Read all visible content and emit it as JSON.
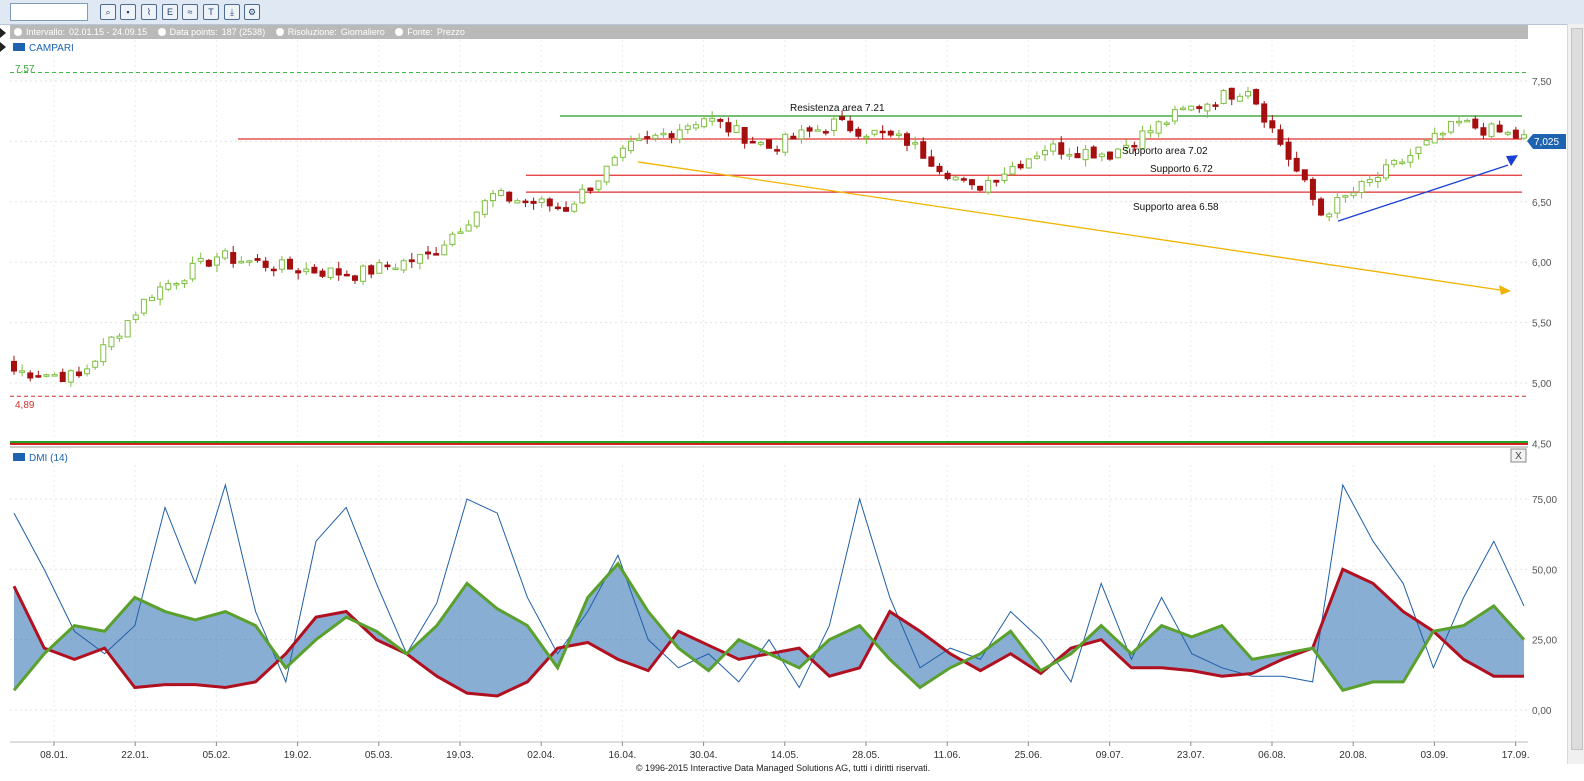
{
  "toolbar": {
    "buttons": [
      "zoom-icon",
      "candlestick-icon",
      "line-chart-icon",
      "indicator-icon",
      "studies-icon",
      "text-tool-icon",
      "export-icon",
      "settings-icon"
    ]
  },
  "infobar": {
    "interval_label": "Intervallo:",
    "interval_value": "02.01.15 - 24.09.15",
    "datapoints_label": "Data points:",
    "datapoints_value": "187 (2538)",
    "resolution_label": "Risoluzione:",
    "resolution_value": "Giornaliero",
    "source_label": "Fonte:",
    "source_value": "Prezzo"
  },
  "price_panel": {
    "legend": "CAMPARI",
    "high_marker": "7,57",
    "low_marker": "4,89",
    "last_price": "7,025",
    "y_ticks": [
      "7,50",
      "7,00",
      "6,50",
      "6,00",
      "5,50",
      "5,00",
      "4,50"
    ],
    "annotations": {
      "resistance": "Resistenza area 7.21",
      "support_702": "Supporto area 7.02",
      "support_672": "Supporto 6.72",
      "support_658": "Supporto area 6.58"
    },
    "colors": {
      "up": "#7fbf3f",
      "down": "#a50f0f",
      "resistance": "#229922",
      "support": "#e03030"
    }
  },
  "dmi_panel": {
    "legend": "DMI (14)",
    "close_label": "X",
    "y_ticks": [
      "75,00",
      "50,00",
      "25,00",
      "0,00"
    ]
  },
  "x_axis": {
    "labels": [
      "08.01.",
      "22.01.",
      "05.02.",
      "19.02.",
      "05.03.",
      "19.03.",
      "02.04.",
      "16.04.",
      "30.04.",
      "14.05.",
      "28.05.",
      "11.06.",
      "25.06.",
      "09.07.",
      "23.07.",
      "06.08.",
      "20.08.",
      "03.09.",
      "17.09."
    ]
  },
  "chart_data": [
    {
      "type": "candlestick",
      "series": [
        {
          "name": "CAMPARI"
        }
      ],
      "x_range": [
        "02.01.15",
        "24.09.15"
      ],
      "ylim": [
        4.5,
        7.6
      ],
      "high": 7.57,
      "low": 4.89,
      "last": 7.025,
      "key_closes": [
        {
          "date": "02.01.",
          "value": 5.1
        },
        {
          "date": "08.01.",
          "value": 5.05
        },
        {
          "date": "22.01.",
          "value": 5.75
        },
        {
          "date": "29.01.",
          "value": 6.05
        },
        {
          "date": "05.02.",
          "value": 5.95
        },
        {
          "date": "19.02.",
          "value": 5.9
        },
        {
          "date": "05.03.",
          "value": 6.05
        },
        {
          "date": "19.03.",
          "value": 6.55
        },
        {
          "date": "26.03.",
          "value": 6.45
        },
        {
          "date": "02.04.",
          "value": 6.95
        },
        {
          "date": "16.04.",
          "value": 7.2
        },
        {
          "date": "30.04.",
          "value": 6.95
        },
        {
          "date": "14.05.",
          "value": 7.15
        },
        {
          "date": "28.05.",
          "value": 7.0
        },
        {
          "date": "11.06.",
          "value": 6.6
        },
        {
          "date": "25.06.",
          "value": 6.95
        },
        {
          "date": "09.07.",
          "value": 6.9
        },
        {
          "date": "23.07.",
          "value": 7.25
        },
        {
          "date": "06.08.",
          "value": 7.45
        },
        {
          "date": "20.08.",
          "value": 6.4
        },
        {
          "date": "03.09.",
          "value": 6.75
        },
        {
          "date": "17.09.",
          "value": 7.15
        },
        {
          "date": "24.09.",
          "value": 7.025
        }
      ],
      "horizontal_levels": [
        {
          "name": "Resistenza area 7.21",
          "value": 7.21
        },
        {
          "name": "Supporto area 7.02",
          "value": 7.02
        },
        {
          "name": "Supporto 6.72",
          "value": 6.72
        },
        {
          "name": "Supporto area 6.58",
          "value": 6.58
        }
      ],
      "trendlines": [
        {
          "name": "downtrend",
          "from": {
            "date": "23.04.",
            "value": 6.83
          },
          "to": {
            "date": "24.09.",
            "value": 5.77
          }
        },
        {
          "name": "uptrend",
          "from": {
            "date": "24.08.",
            "value": 6.34
          },
          "to": {
            "date": "24.09.",
            "value": 6.87
          }
        }
      ]
    },
    {
      "type": "line",
      "series": [
        {
          "name": "ADX",
          "color": "#1f5fa8"
        },
        {
          "name": "+DI",
          "color": "#5aa02c"
        },
        {
          "name": "-DI",
          "color": "#b01020"
        }
      ],
      "ylim": [
        0,
        85
      ],
      "approx_plus_di": [
        7,
        20,
        30,
        28,
        40,
        35,
        32,
        35,
        30,
        15,
        25,
        33,
        28,
        20,
        30,
        45,
        36,
        30,
        15,
        40,
        52,
        35,
        22,
        14,
        25,
        20,
        15,
        25,
        30,
        18,
        8,
        15,
        20,
        28,
        14,
        20,
        30,
        20,
        30,
        26,
        30,
        18,
        20,
        22,
        7,
        10,
        10,
        28,
        30,
        37,
        25
      ],
      "approx_minus_di": [
        44,
        22,
        18,
        22,
        8,
        9,
        9,
        8,
        10,
        20,
        33,
        35,
        25,
        20,
        12,
        6,
        5,
        10,
        22,
        24,
        18,
        14,
        28,
        23,
        18,
        20,
        22,
        12,
        15,
        35,
        28,
        20,
        14,
        20,
        13,
        22,
        25,
        15,
        15,
        14,
        12,
        13,
        18,
        22,
        50,
        45,
        35,
        28,
        18,
        12,
        12
      ],
      "approx_adx": [
        70,
        50,
        28,
        20,
        30,
        72,
        45,
        80,
        35,
        10,
        60,
        72,
        45,
        20,
        38,
        75,
        70,
        40,
        20,
        35,
        55,
        25,
        15,
        20,
        10,
        25,
        8,
        30,
        75,
        40,
        15,
        22,
        18,
        35,
        25,
        10,
        45,
        18,
        40,
        20,
        15,
        12,
        12,
        10,
        80,
        60,
        45,
        15,
        40,
        60,
        37
      ]
    }
  ]
}
